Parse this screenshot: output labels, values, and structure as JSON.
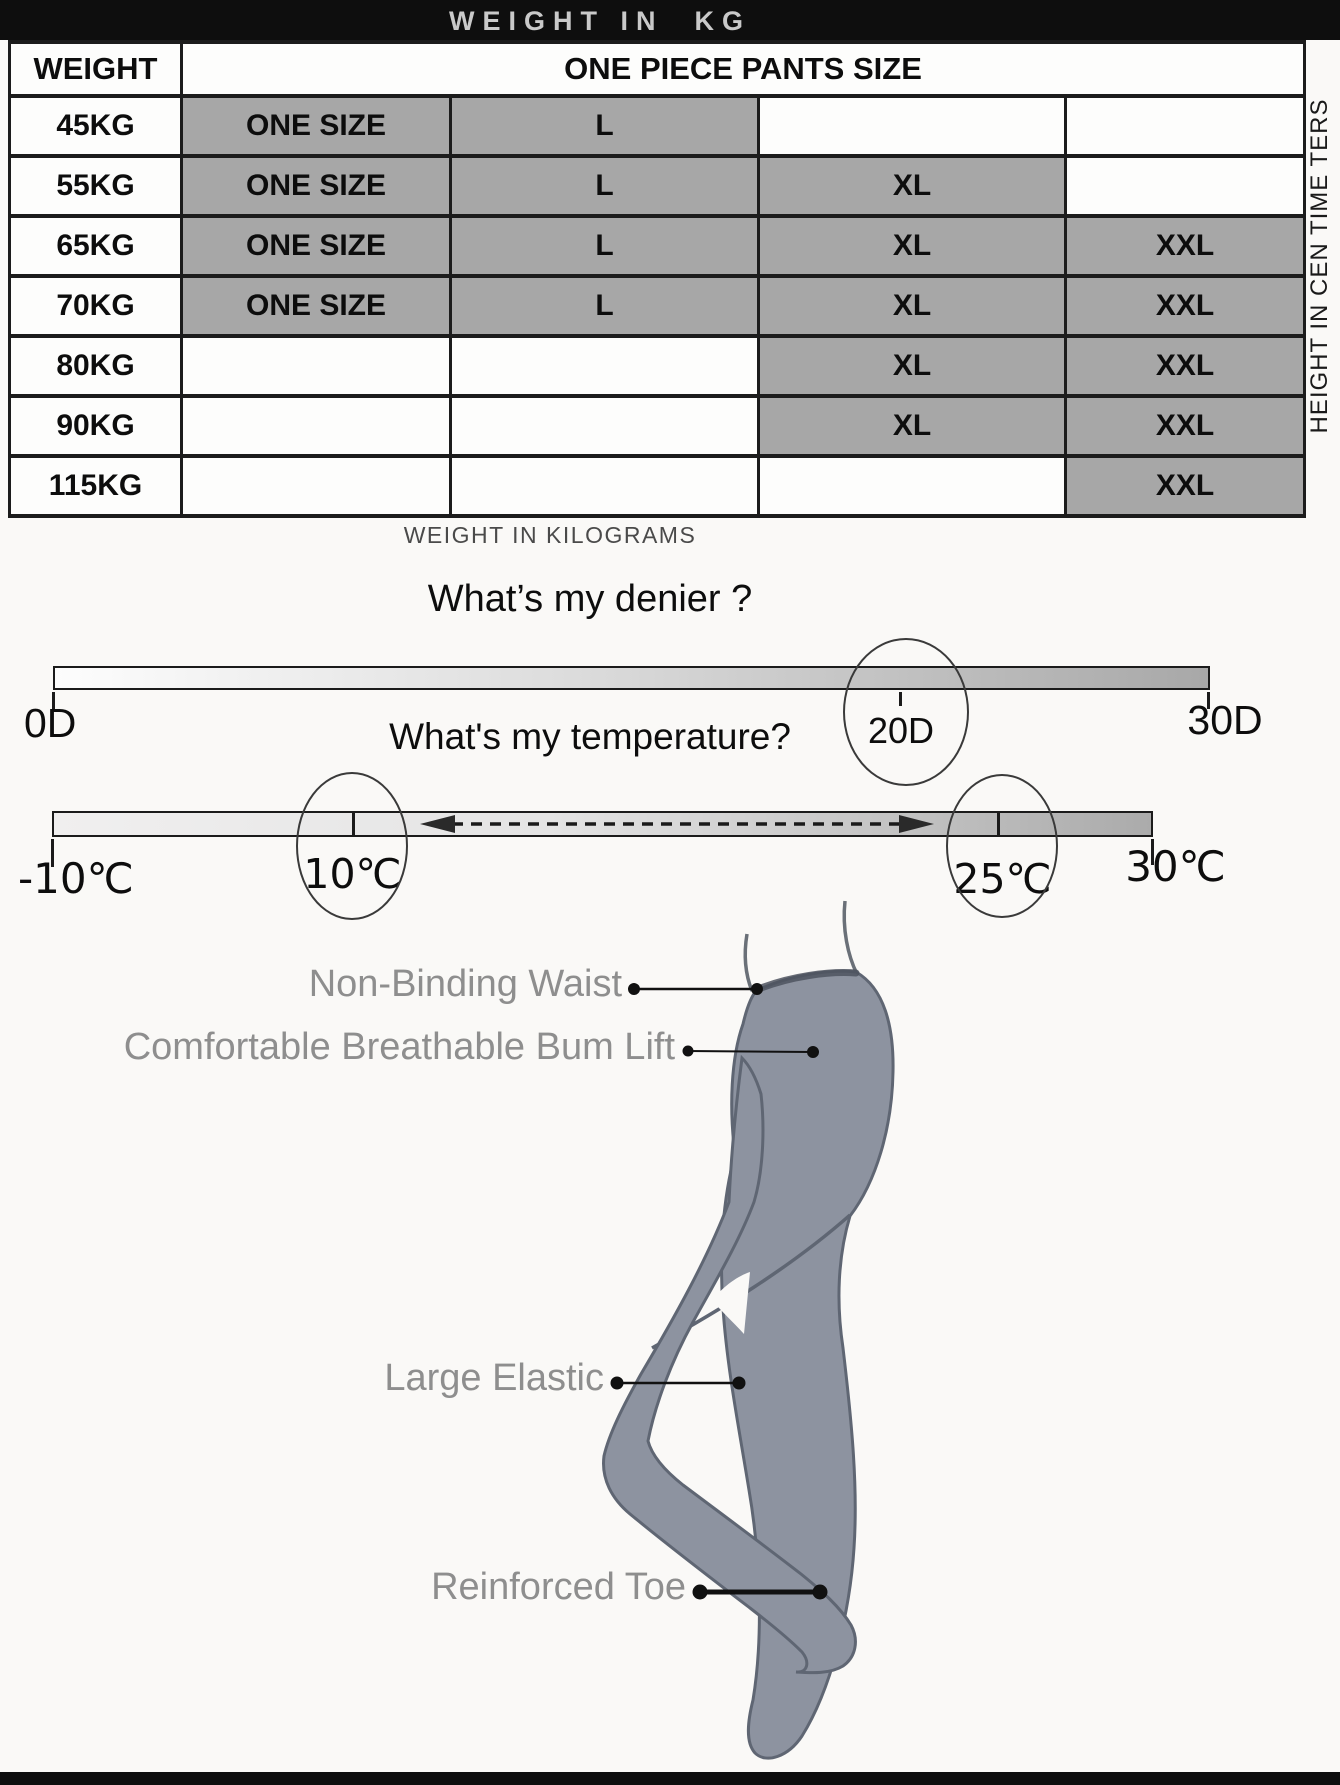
{
  "page": {
    "background": "#faf9f7",
    "bar_color": "#0e0e0e",
    "filled_cell_color": "#a7a7a7",
    "tights_color": "#8d93a0",
    "tights_outline_color": "#5f6673",
    "feature_text_color": "#8e8e8e"
  },
  "top_banner": {
    "title": "WEIGHT IN  KG"
  },
  "size_table": {
    "corner_header": "WEIGHT",
    "span_header": "ONE PIECE PANTS SIZE",
    "side_note": "HEIGHT IN CEN TIME TERS",
    "caption": "WEIGHT IN KILOGRAMS",
    "rows": [
      {
        "weight": "45KG",
        "sizes": [
          "ONE SIZE",
          "L",
          "",
          ""
        ]
      },
      {
        "weight": "55KG",
        "sizes": [
          "ONE SIZE",
          "L",
          "XL",
          ""
        ]
      },
      {
        "weight": "65KG",
        "sizes": [
          "ONE SIZE",
          "L",
          "XL",
          "XXL"
        ]
      },
      {
        "weight": "70KG",
        "sizes": [
          "ONE SIZE",
          "L",
          "XL",
          "XXL"
        ]
      },
      {
        "weight": "80KG",
        "sizes": [
          "",
          "",
          "XL",
          "XXL"
        ]
      },
      {
        "weight": "90KG",
        "sizes": [
          "",
          "",
          "XL",
          "XXL"
        ]
      },
      {
        "weight": "115KG",
        "sizes": [
          "",
          "",
          "",
          "XXL"
        ]
      }
    ]
  },
  "denier_scale": {
    "question": "What’s my denier ?",
    "min_label": "0D",
    "highlight_label": "20D",
    "max_label": "30D"
  },
  "temperature_scale": {
    "question": "What's my temperature?",
    "min_label": "-10℃",
    "low_label": "10℃",
    "high_label": "25℃",
    "max_label": "30℃"
  },
  "features": [
    {
      "label": "Non-Binding Waist"
    },
    {
      "label": "Comfortable Breathable Bum Lift"
    },
    {
      "label": "Large Elastic"
    },
    {
      "label": "Reinforced Toe"
    }
  ]
}
